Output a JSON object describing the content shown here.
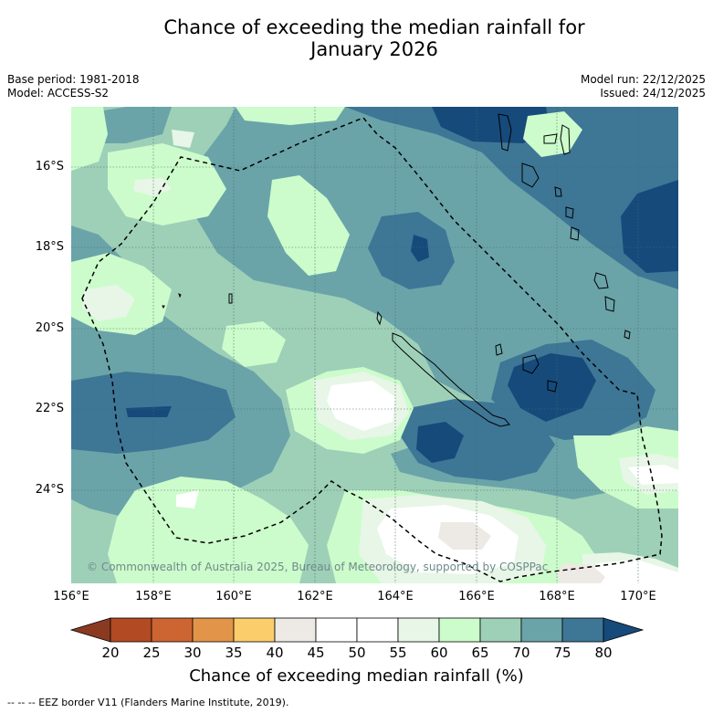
{
  "header": {
    "title_line1": "Chance of exceeding the median rainfall for",
    "title_line2": "January 2026"
  },
  "meta": {
    "base_period": "Base period: 1981-2018",
    "model": "Model: ACCESS-S2",
    "model_run": "Model run: 22/12/2025",
    "issued": "Issued: 24/12/2025"
  },
  "axes": {
    "lat_labels": [
      "16°S",
      "18°S",
      "20°S",
      "22°S",
      "24°S"
    ],
    "lon_labels": [
      "156°E",
      "158°E",
      "160°E",
      "162°E",
      "164°E",
      "166°E",
      "168°E",
      "170°E"
    ]
  },
  "copyright": "© Commonwealth of Australia 2025, Bureau of Meteorology, supported by COSPPac",
  "colorbar": {
    "ticks": [
      "20",
      "25",
      "30",
      "35",
      "40",
      "45",
      "50",
      "55",
      "60",
      "65",
      "70",
      "75",
      "80"
    ],
    "colors": [
      "#8b3a22",
      "#b24a24",
      "#cd6533",
      "#e29548",
      "#fbcd6b",
      "#ede9e4",
      "#ffffff",
      "#ffffff",
      "#e7f6e6",
      "#ccfccb",
      "#9ed0b8",
      "#6aa4a9",
      "#3e7696",
      "#164a7b"
    ],
    "label": "Chance of exceeding median rainfall (%)"
  },
  "footer": "--  --  -- EEZ border V11 (Flanders Marine Institute, 2019)."
}
